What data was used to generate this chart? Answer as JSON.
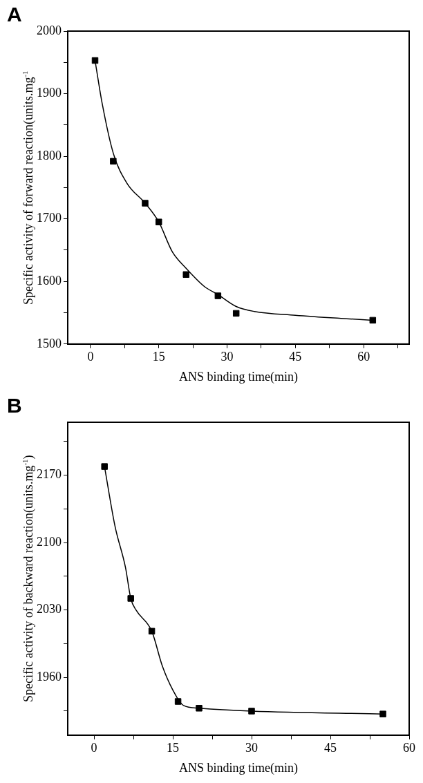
{
  "chart_data": [
    {
      "type": "scatter",
      "title": "A",
      "xlabel": "ANS binding time(min)",
      "ylabel": "Specific activity of forward reaction(units.mg$^{-1}$",
      "marker": "square",
      "grid": false,
      "xlim": [
        -5,
        70
      ],
      "ylim": [
        1500,
        2000
      ],
      "xticks": [
        0,
        {
          "value": 7.5,
          "label": null
        },
        15,
        {
          "value": 22.5,
          "label": null
        },
        30,
        {
          "value": 37.5,
          "label": null
        },
        45,
        {
          "value": 52.5,
          "label": null
        },
        60,
        {
          "value": 67.5,
          "label": null
        }
      ],
      "yticks": [
        1500,
        {
          "value": 1550,
          "label": null
        },
        1600,
        {
          "value": 1650,
          "label": null
        },
        1700,
        {
          "value": 1750,
          "label": null
        },
        1800,
        {
          "value": 1850,
          "label": null
        },
        1900,
        {
          "value": 1950,
          "label": null
        },
        2000
      ],
      "series": [
        {
          "type": "scatter",
          "color": "#000000",
          "x": [
            1,
            5,
            12,
            15,
            21,
            28,
            32,
            62
          ],
          "values": [
            1953,
            1792,
            1725,
            1695,
            1611,
            1577,
            1549,
            1538
          ]
        },
        {
          "type": "line",
          "color": "#000000",
          "marker": "none",
          "x": [
            1,
            2.6,
            5,
            8,
            12,
            15,
            18,
            21,
            25,
            28,
            32,
            36,
            45,
            55,
            62
          ],
          "values": [
            1953,
            1883,
            1805,
            1757,
            1725,
            1695,
            1647,
            1621,
            1592,
            1579,
            1560,
            1552,
            1546,
            1541,
            1538
          ]
        }
      ]
    },
    {
      "type": "scatter",
      "title": "B",
      "xlabel": "ANS binding time(min)",
      "ylabel": "Specific activity of backward reaction(units.mg$^{-1}$)",
      "marker": "square",
      "grid": false,
      "xlim": [
        -5,
        60
      ],
      "ylim": [
        1900,
        2225
      ],
      "xticks": [
        0,
        {
          "value": 7.5,
          "label": null
        },
        15,
        {
          "value": 22.5,
          "label": null
        },
        30,
        {
          "value": 37.5,
          "label": null
        },
        45,
        {
          "value": 52.5,
          "label": null
        },
        60
      ],
      "yticks": [
        {
          "value": 1925,
          "label": null
        },
        1960,
        {
          "value": 1995,
          "label": null
        },
        2030,
        {
          "value": 2065,
          "label": null
        },
        2100,
        {
          "value": 2135,
          "label": null
        },
        2170,
        {
          "value": 2205,
          "label": null
        }
      ],
      "series": [
        {
          "type": "scatter",
          "color": "#000000",
          "x": [
            2,
            7,
            11,
            16,
            20,
            30,
            55
          ],
          "values": [
            2179,
            2042,
            2008,
            1935,
            1928,
            1925,
            1922
          ]
        },
        {
          "type": "line",
          "color": "#000000",
          "marker": "none",
          "x": [
            2,
            4,
            6,
            7,
            8,
            11,
            13,
            15,
            17,
            20,
            30,
            55
          ],
          "values": [
            2179,
            2117,
            2074,
            2042,
            2030,
            2008,
            1972,
            1947,
            1931,
            1928,
            1925,
            1922
          ]
        }
      ]
    }
  ]
}
